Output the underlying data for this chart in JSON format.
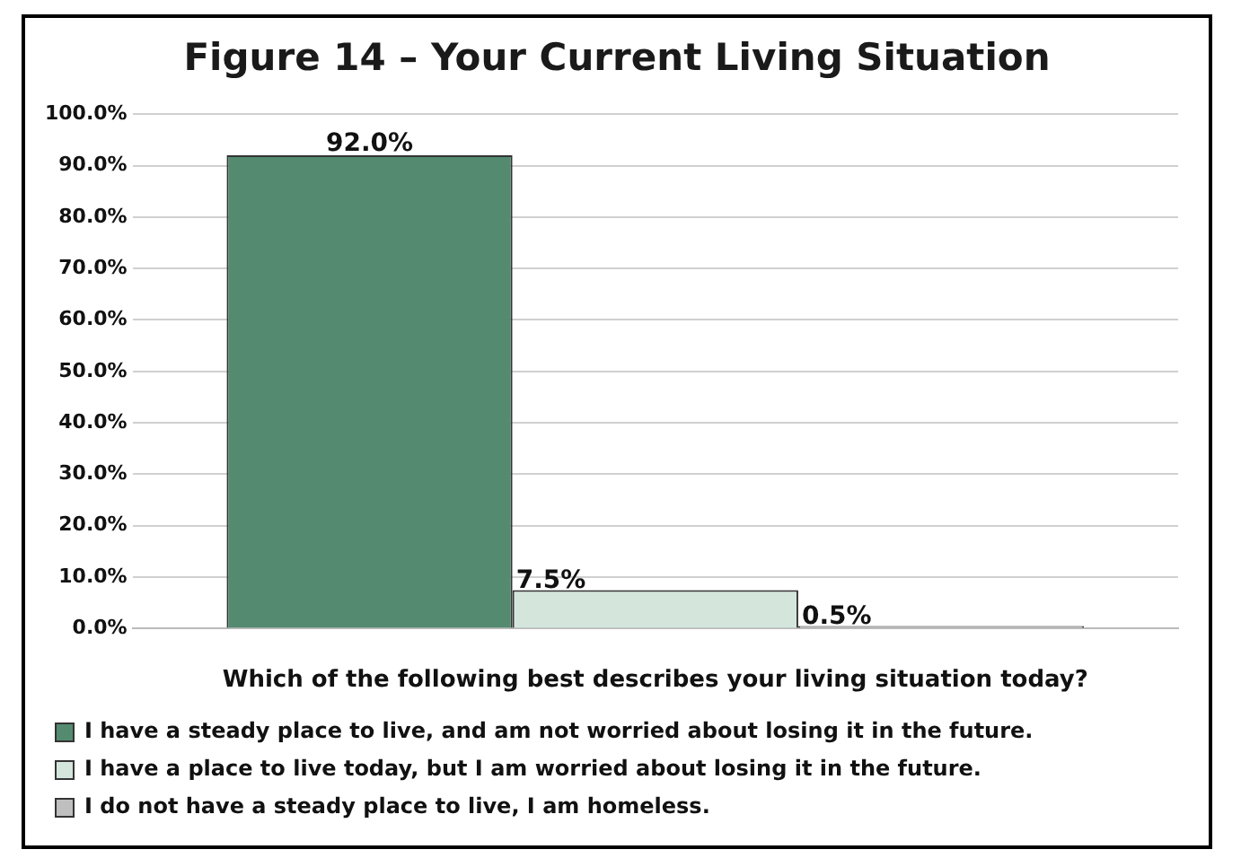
{
  "chart_data": {
    "type": "bar",
    "title": "Figure 14 – Your Current Living Situation",
    "xlabel": "Which of the following best describes your living situation today?",
    "categories": [
      null
    ],
    "series": [
      {
        "name": "I have a steady place to live, and am not worried about losing it in the future.",
        "color": "#548b70",
        "values": [
          92.0
        ],
        "value_labels": [
          "92.0%"
        ]
      },
      {
        "name": "I have a place to live today, but I am worried about losing it in the future.",
        "color": "#d4e6dc",
        "values": [
          7.5
        ],
        "value_labels": [
          "7.5%"
        ]
      },
      {
        "name": "I do not have a steady place to live, I am homeless.",
        "color": "#bfbfbf",
        "values": [
          0.5
        ],
        "value_labels": [
          "0.5%"
        ]
      }
    ],
    "ylim": [
      0,
      100
    ],
    "yticks": [
      {
        "value": 0,
        "label": "0.0%"
      },
      {
        "value": 10,
        "label": "10.0%"
      },
      {
        "value": 20,
        "label": "20.0%"
      },
      {
        "value": 30,
        "label": "30.0%"
      },
      {
        "value": 40,
        "label": "40.0%"
      },
      {
        "value": 50,
        "label": "50.0%"
      },
      {
        "value": 60,
        "label": "60.0%"
      },
      {
        "value": 70,
        "label": "70.0%"
      },
      {
        "value": 80,
        "label": "80.0%"
      },
      {
        "value": 90,
        "label": "90.0%"
      },
      {
        "value": 100,
        "label": "100.0%"
      }
    ],
    "grid": "y",
    "legend": "bottom"
  }
}
